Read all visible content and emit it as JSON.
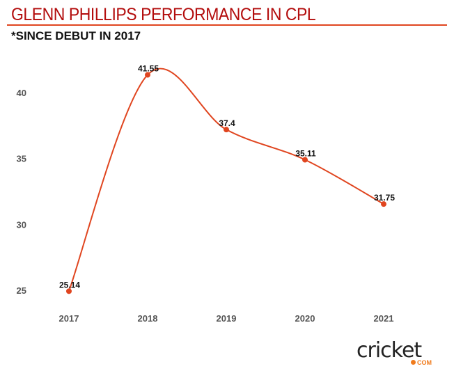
{
  "chart_data": {
    "type": "line",
    "title": "GLENN PHILLIPS PERFORMANCE IN CPL",
    "subtitle": "*SINCE DEBUT IN 2017",
    "xlabel": "",
    "ylabel": "",
    "categories": [
      "2017",
      "2018",
      "2019",
      "2020",
      "2021"
    ],
    "values": [
      25.14,
      41.55,
      37.4,
      35.11,
      31.75
    ],
    "data_labels": [
      "25.14",
      "41.55",
      "37.4",
      "35.11",
      "31.75"
    ],
    "yticks": [
      25,
      30,
      35,
      40
    ],
    "ylim": [
      25,
      40
    ],
    "grid": false,
    "color": "#e0451f"
  },
  "logo": {
    "text": "cricket",
    "suffix": "COM"
  }
}
